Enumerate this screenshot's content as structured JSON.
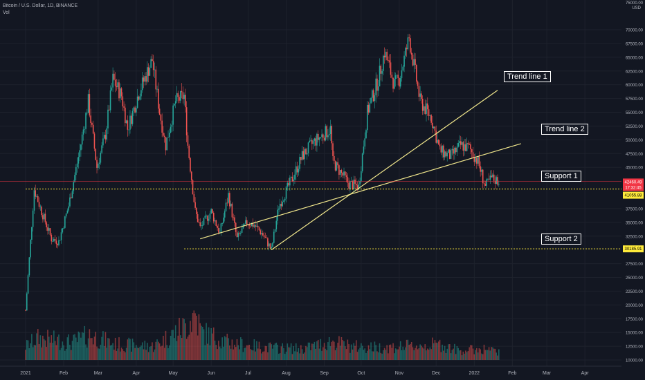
{
  "header": {
    "symbol_line": "Bitcoin / U.S. Dollar, 1D, BINANCE",
    "volume_label": "Vol"
  },
  "price_axis": {
    "top_label": "75000.00",
    "currency": "USD",
    "ticks": [
      70000,
      67500,
      65000,
      62500,
      60000,
      57500,
      55000,
      52500,
      50000,
      47500,
      45000,
      37500,
      35000,
      32500,
      27500,
      25000,
      22500,
      20000,
      17500,
      15000,
      12500,
      10000
    ]
  },
  "badges": {
    "last_price": "42460.49",
    "countdown": "17:32:45",
    "support1_price": "41055.88",
    "support2_price": "30185.91"
  },
  "time_axis": {
    "labels": [
      "2021",
      "Feb",
      "Mar",
      "Apr",
      "May",
      "Jun",
      "Jul",
      "Aug",
      "Sep",
      "Oct",
      "Nov",
      "Dec",
      "2022",
      "Feb",
      "Mar",
      "Apr"
    ]
  },
  "annotations": {
    "trend1": "Trend line 1",
    "trend2": "Trend line 2",
    "support1": "Support 1",
    "support2": "Support 2"
  },
  "colors": {
    "background": "#131722",
    "up": "#26a69a",
    "down": "#ef5350",
    "trend_line": "#f0e68c",
    "support_line": "#ffeb3b",
    "last_price_badge": "#f23645"
  },
  "chart_data": {
    "type": "candlestick",
    "title": "",
    "symbol": "Bitcoin / U.S. Dollar",
    "interval": "1D",
    "exchange": "BINANCE",
    "ylim": [
      7500,
      75000
    ],
    "date_range": [
      "2021-01-01",
      "2022-04-15"
    ],
    "price_path": [
      [
        "2021-01-01",
        19000
      ],
      [
        "2021-01-08",
        41000
      ],
      [
        "2021-01-14",
        37000
      ],
      [
        "2021-01-22",
        32000
      ],
      [
        "2021-01-28",
        31500
      ],
      [
        "2021-02-05",
        38000
      ],
      [
        "2021-02-14",
        48000
      ],
      [
        "2021-02-21",
        57000
      ],
      [
        "2021-02-28",
        45000
      ],
      [
        "2021-03-07",
        51000
      ],
      [
        "2021-03-13",
        61000
      ],
      [
        "2021-03-20",
        58000
      ],
      [
        "2021-03-25",
        52000
      ],
      [
        "2021-04-03",
        58500
      ],
      [
        "2021-04-14",
        64500
      ],
      [
        "2021-04-20",
        55000
      ],
      [
        "2021-04-25",
        49000
      ],
      [
        "2021-05-03",
        57000
      ],
      [
        "2021-05-10",
        58000
      ],
      [
        "2021-05-13",
        49000
      ],
      [
        "2021-05-19",
        37000
      ],
      [
        "2021-05-23",
        34000
      ],
      [
        "2021-06-01",
        37000
      ],
      [
        "2021-06-08",
        33000
      ],
      [
        "2021-06-15",
        40000
      ],
      [
        "2021-06-22",
        32000
      ],
      [
        "2021-06-30",
        35000
      ],
      [
        "2021-07-06",
        34500
      ],
      [
        "2021-07-13",
        32800
      ],
      [
        "2021-07-20",
        30000
      ],
      [
        "2021-07-26",
        38000
      ],
      [
        "2021-08-06",
        43000
      ],
      [
        "2021-08-14",
        47000
      ],
      [
        "2021-08-23",
        49500
      ],
      [
        "2021-09-06",
        52000
      ],
      [
        "2021-09-08",
        46000
      ],
      [
        "2021-09-21",
        42000
      ],
      [
        "2021-09-29",
        41500
      ],
      [
        "2021-10-06",
        55000
      ],
      [
        "2021-10-15",
        61000
      ],
      [
        "2021-10-20",
        66000
      ],
      [
        "2021-10-28",
        60000
      ],
      [
        "2021-11-01",
        61000
      ],
      [
        "2021-11-09",
        68500
      ],
      [
        "2021-11-18",
        57000
      ],
      [
        "2021-11-27",
        54000
      ],
      [
        "2021-12-04",
        48000
      ],
      [
        "2021-12-13",
        47000
      ],
      [
        "2021-12-21",
        49000
      ],
      [
        "2021-12-28",
        48500
      ],
      [
        "2022-01-04",
        46000
      ],
      [
        "2022-01-10",
        41500
      ],
      [
        "2022-01-15",
        43000
      ],
      [
        "2022-01-21",
        42460
      ]
    ],
    "volume_path": [
      [
        "2021-01-01",
        22
      ],
      [
        "2021-01-11",
        35
      ],
      [
        "2021-02-08",
        28
      ],
      [
        "2021-02-22",
        40
      ],
      [
        "2021-03-15",
        25
      ],
      [
        "2021-04-15",
        22
      ],
      [
        "2021-05-12",
        55
      ],
      [
        "2021-05-19",
        75
      ],
      [
        "2021-05-24",
        45
      ],
      [
        "2021-06-15",
        28
      ],
      [
        "2021-07-15",
        20
      ],
      [
        "2021-08-15",
        18
      ],
      [
        "2021-09-07",
        30
      ],
      [
        "2021-09-22",
        22
      ],
      [
        "2021-10-15",
        20
      ],
      [
        "2021-11-10",
        22
      ],
      [
        "2021-12-04",
        25
      ],
      [
        "2021-12-20",
        15
      ],
      [
        "2022-01-10",
        18
      ],
      [
        "2022-01-21",
        12
      ]
    ],
    "trend_lines": [
      {
        "name": "Trend line 1",
        "from": [
          "2021-07-20",
          30000
        ],
        "to": [
          "2022-01-20",
          59000
        ]
      },
      {
        "name": "Trend line 2",
        "from": [
          "2021-05-23",
          32000
        ],
        "to": [
          "2022-02-08",
          49300
        ]
      }
    ],
    "support_levels": [
      {
        "name": "Support 1",
        "price": 41055.88,
        "from": "2021-01-01"
      },
      {
        "name": "Support 2",
        "price": 30185.91,
        "from": "2021-05-10"
      }
    ]
  }
}
